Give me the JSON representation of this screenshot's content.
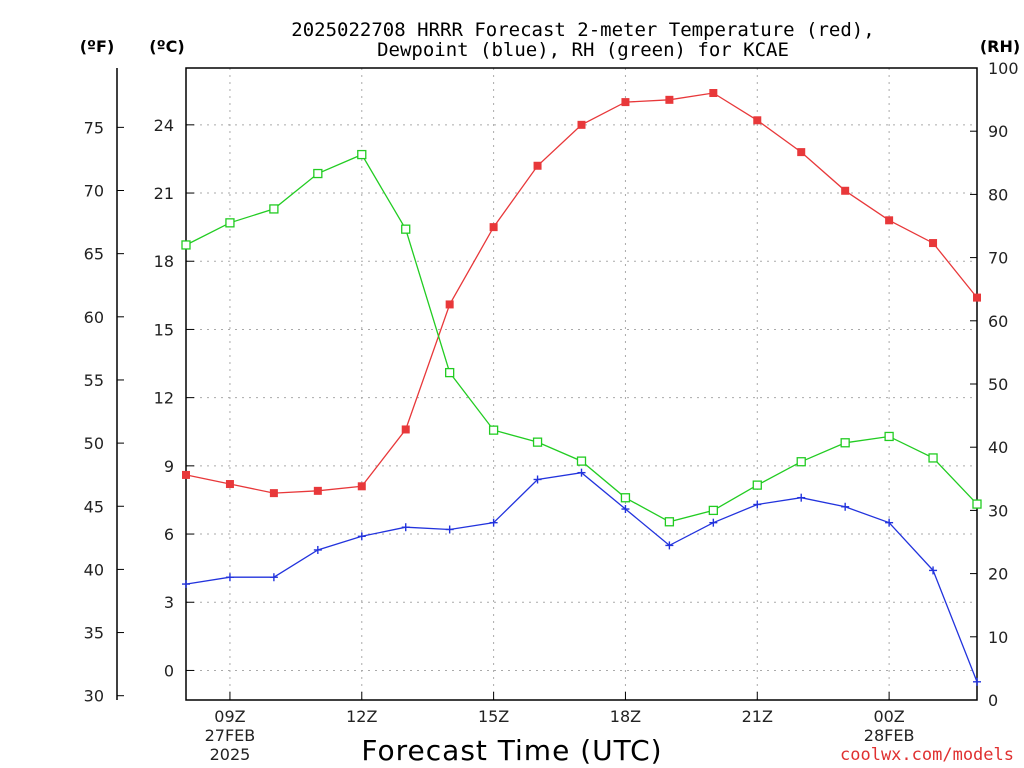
{
  "title_line1": "2025022708 HRRR Forecast 2-meter Temperature (red),",
  "title_line2": "Dewpoint (blue), RH (green) for KCAE",
  "units": {
    "fahrenheit": "(ºF)",
    "celsius": "(ºC)",
    "rh": "(RH)"
  },
  "xlabel": "Forecast Time (UTC)",
  "watermark": "coolwx.com/models",
  "colors": {
    "temperature": "#e8383a",
    "dewpoint": "#2233dd",
    "rh": "#22cc22"
  },
  "chart_data": {
    "type": "line",
    "x": [
      "08Z",
      "09Z",
      "10Z",
      "11Z",
      "12Z",
      "13Z",
      "14Z",
      "15Z",
      "16Z",
      "17Z",
      "18Z",
      "19Z",
      "20Z",
      "21Z",
      "22Z",
      "23Z",
      "00Z",
      "01Z",
      "02Z"
    ],
    "x_tick_labels": [
      {
        "index": 1,
        "lines": [
          "09Z",
          "27FEB",
          "2025"
        ]
      },
      {
        "index": 4,
        "lines": [
          "12Z"
        ]
      },
      {
        "index": 7,
        "lines": [
          "15Z"
        ]
      },
      {
        "index": 10,
        "lines": [
          "18Z"
        ]
      },
      {
        "index": 13,
        "lines": [
          "21Z"
        ]
      },
      {
        "index": 16,
        "lines": [
          "00Z",
          "28FEB"
        ]
      }
    ],
    "axes": {
      "celsius": {
        "min": -1.3,
        "max": 26.5,
        "ticks": [
          0,
          3,
          6,
          9,
          12,
          15,
          18,
          21,
          24
        ]
      },
      "fahrenheit": {
        "ticks": [
          30,
          35,
          40,
          45,
          50,
          55,
          60,
          65,
          70,
          75
        ]
      },
      "rh": {
        "min": 0,
        "max": 100,
        "ticks": [
          0,
          10,
          20,
          30,
          40,
          50,
          60,
          70,
          80,
          90,
          100
        ]
      }
    },
    "grid": true,
    "series": [
      {
        "name": "Temperature",
        "axis": "celsius",
        "marker": "filled-square",
        "values": [
          8.6,
          8.2,
          7.8,
          7.9,
          8.1,
          10.6,
          16.1,
          19.5,
          22.2,
          24.0,
          25.0,
          25.1,
          25.4,
          24.2,
          22.8,
          21.1,
          19.8,
          18.8,
          16.4
        ]
      },
      {
        "name": "Dewpoint",
        "axis": "celsius",
        "marker": "plus",
        "values": [
          3.8,
          4.1,
          4.1,
          5.3,
          5.9,
          6.3,
          6.2,
          6.5,
          8.4,
          8.7,
          7.1,
          5.5,
          6.5,
          7.3,
          7.6,
          7.2,
          6.5,
          4.4,
          -0.5
        ]
      },
      {
        "name": "RH",
        "axis": "rh",
        "marker": "open-square",
        "values": [
          72,
          75.5,
          77.7,
          83.3,
          86.3,
          74.5,
          51.8,
          42.7,
          40.8,
          37.8,
          32.0,
          28.2,
          30.0,
          34.0,
          37.7,
          40.7,
          41.7,
          38.3,
          31.0
        ]
      }
    ]
  }
}
